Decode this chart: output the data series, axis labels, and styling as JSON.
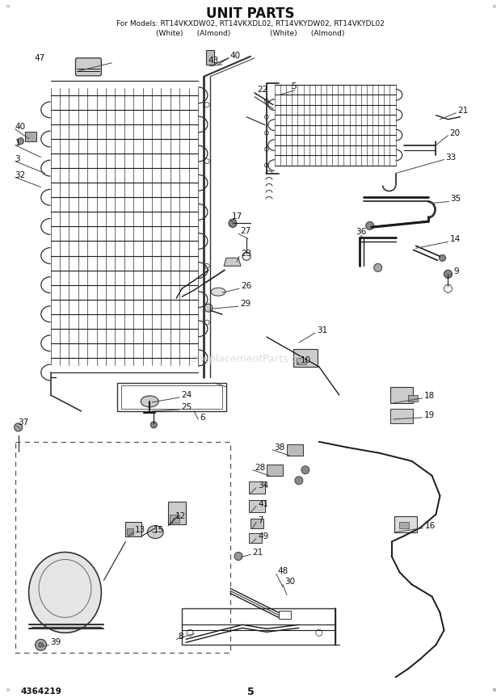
{
  "title": "UNIT PARTS",
  "subtitle_line1": "For Models: RT14VKXDW02, RT14VKXDL02, RT14VKYDW02, RT14VKYDL02",
  "subtitle_line2": "(White)      (Almond)                 (White)      (Almond)",
  "doc_number": "4364219",
  "page_number": "5",
  "bg_color": "#ffffff",
  "lc": "#1a1a1a",
  "tc": "#111111",
  "wm_color": "#d0d0d0"
}
